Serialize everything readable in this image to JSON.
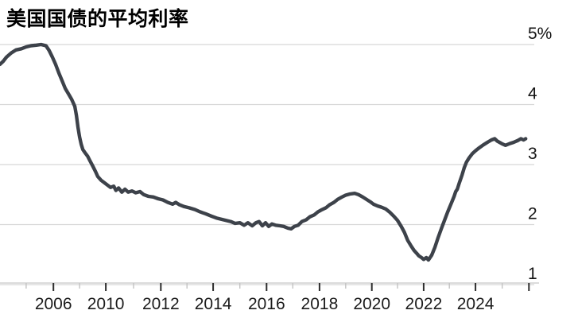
{
  "header": {
    "title": "美国国债的平均利率"
  },
  "chart_data": {
    "type": "line",
    "title": "美国国债的平均利率",
    "unit": "%",
    "grid": true,
    "legend": "none",
    "colors": {
      "line": "#3d424a",
      "grid": "#d7d7d7",
      "axis": "#c6c6c6",
      "tick_major": "#2d2d2d",
      "tick_minor": "#c3c3c3",
      "label": "#141414",
      "title": "#000000",
      "background": "#ffffff"
    },
    "y_axis": {
      "side": "right",
      "range": [
        1,
        5
      ],
      "ticks": [
        {
          "value": 5,
          "label": "5%"
        },
        {
          "value": 4,
          "label": "4"
        },
        {
          "value": 3,
          "label": "3"
        },
        {
          "value": 2,
          "label": "2"
        },
        {
          "value": 1,
          "label": "1"
        }
      ]
    },
    "x_axis": {
      "tick_labels_shown": [
        "2006",
        "2010",
        "2012",
        "2014",
        "2016",
        "2018",
        "2020",
        "2022",
        "2024"
      ],
      "ticks": [
        {
          "pos": 0.049,
          "major": false,
          "label": ""
        },
        {
          "pos": 0.1,
          "major": true,
          "label": "2006"
        },
        {
          "pos": 0.149,
          "major": false,
          "label": ""
        },
        {
          "pos": 0.198,
          "major": true,
          "label": "2010"
        },
        {
          "pos": 0.25,
          "major": false,
          "label": ""
        },
        {
          "pos": 0.301,
          "major": true,
          "label": "2012"
        },
        {
          "pos": 0.35,
          "major": false,
          "label": ""
        },
        {
          "pos": 0.399,
          "major": true,
          "label": "2014"
        },
        {
          "pos": 0.449,
          "major": false,
          "label": ""
        },
        {
          "pos": 0.499,
          "major": true,
          "label": "2016"
        },
        {
          "pos": 0.548,
          "major": false,
          "label": ""
        },
        {
          "pos": 0.598,
          "major": true,
          "label": "2018"
        },
        {
          "pos": 0.647,
          "major": false,
          "label": ""
        },
        {
          "pos": 0.696,
          "major": true,
          "label": "2020"
        },
        {
          "pos": 0.744,
          "major": false,
          "label": ""
        },
        {
          "pos": 0.793,
          "major": true,
          "label": "2022"
        },
        {
          "pos": 0.841,
          "major": false,
          "label": ""
        },
        {
          "pos": 0.89,
          "major": true,
          "label": "2024"
        },
        {
          "pos": 0.94,
          "major": false,
          "label": ""
        },
        {
          "pos": 0.99,
          "major": true,
          "label": ""
        }
      ]
    },
    "series": [
      {
        "name": "美国国债的平均利率",
        "color": "#3d424a",
        "points": [
          [
            0.0,
            4.67
          ],
          [
            0.006,
            4.72
          ],
          [
            0.012,
            4.79
          ],
          [
            0.021,
            4.86
          ],
          [
            0.03,
            4.91
          ],
          [
            0.04,
            4.93
          ],
          [
            0.049,
            4.96
          ],
          [
            0.058,
            4.98
          ],
          [
            0.068,
            4.99
          ],
          [
            0.077,
            5.0
          ],
          [
            0.086,
            4.98
          ],
          [
            0.092,
            4.9
          ],
          [
            0.098,
            4.79
          ],
          [
            0.104,
            4.67
          ],
          [
            0.11,
            4.53
          ],
          [
            0.116,
            4.4
          ],
          [
            0.122,
            4.27
          ],
          [
            0.128,
            4.18
          ],
          [
            0.134,
            4.09
          ],
          [
            0.14,
            3.97
          ],
          [
            0.143,
            3.82
          ],
          [
            0.146,
            3.62
          ],
          [
            0.149,
            3.46
          ],
          [
            0.152,
            3.34
          ],
          [
            0.155,
            3.25
          ],
          [
            0.159,
            3.2
          ],
          [
            0.164,
            3.14
          ],
          [
            0.168,
            3.07
          ],
          [
            0.174,
            2.97
          ],
          [
            0.179,
            2.88
          ],
          [
            0.183,
            2.8
          ],
          [
            0.189,
            2.74
          ],
          [
            0.195,
            2.7
          ],
          [
            0.201,
            2.66
          ],
          [
            0.207,
            2.62
          ],
          [
            0.213,
            2.64
          ],
          [
            0.217,
            2.57
          ],
          [
            0.222,
            2.61
          ],
          [
            0.228,
            2.54
          ],
          [
            0.234,
            2.59
          ],
          [
            0.24,
            2.54
          ],
          [
            0.247,
            2.56
          ],
          [
            0.254,
            2.53
          ],
          [
            0.262,
            2.55
          ],
          [
            0.269,
            2.5
          ],
          [
            0.278,
            2.47
          ],
          [
            0.287,
            2.46
          ],
          [
            0.296,
            2.43
          ],
          [
            0.305,
            2.41
          ],
          [
            0.314,
            2.37
          ],
          [
            0.323,
            2.34
          ],
          [
            0.329,
            2.37
          ],
          [
            0.336,
            2.33
          ],
          [
            0.345,
            2.3
          ],
          [
            0.354,
            2.28
          ],
          [
            0.365,
            2.25
          ],
          [
            0.375,
            2.21
          ],
          [
            0.385,
            2.18
          ],
          [
            0.396,
            2.14
          ],
          [
            0.405,
            2.11
          ],
          [
            0.414,
            2.09
          ],
          [
            0.423,
            2.07
          ],
          [
            0.432,
            2.05
          ],
          [
            0.44,
            2.02
          ],
          [
            0.449,
            2.03
          ],
          [
            0.457,
            1.99
          ],
          [
            0.464,
            2.03
          ],
          [
            0.472,
            1.98
          ],
          [
            0.479,
            2.03
          ],
          [
            0.485,
            2.05
          ],
          [
            0.491,
            1.98
          ],
          [
            0.497,
            2.03
          ],
          [
            0.503,
            1.97
          ],
          [
            0.509,
            2.01
          ],
          [
            0.516,
            1.99
          ],
          [
            0.524,
            1.98
          ],
          [
            0.531,
            1.97
          ],
          [
            0.539,
            1.94
          ],
          [
            0.545,
            1.93
          ],
          [
            0.551,
            1.97
          ],
          [
            0.558,
            1.99
          ],
          [
            0.565,
            2.05
          ],
          [
            0.573,
            2.08
          ],
          [
            0.58,
            2.13
          ],
          [
            0.588,
            2.16
          ],
          [
            0.595,
            2.21
          ],
          [
            0.603,
            2.25
          ],
          [
            0.61,
            2.28
          ],
          [
            0.617,
            2.33
          ],
          [
            0.625,
            2.37
          ],
          [
            0.632,
            2.42
          ],
          [
            0.64,
            2.46
          ],
          [
            0.647,
            2.49
          ],
          [
            0.655,
            2.51
          ],
          [
            0.664,
            2.52
          ],
          [
            0.671,
            2.5
          ],
          [
            0.679,
            2.46
          ],
          [
            0.686,
            2.42
          ],
          [
            0.693,
            2.38
          ],
          [
            0.699,
            2.34
          ],
          [
            0.707,
            2.31
          ],
          [
            0.714,
            2.29
          ],
          [
            0.722,
            2.26
          ],
          [
            0.729,
            2.21
          ],
          [
            0.737,
            2.14
          ],
          [
            0.744,
            2.07
          ],
          [
            0.751,
            1.97
          ],
          [
            0.757,
            1.87
          ],
          [
            0.763,
            1.74
          ],
          [
            0.769,
            1.65
          ],
          [
            0.775,
            1.57
          ],
          [
            0.78,
            1.52
          ],
          [
            0.784,
            1.48
          ],
          [
            0.789,
            1.45
          ],
          [
            0.793,
            1.42
          ],
          [
            0.798,
            1.45
          ],
          [
            0.802,
            1.41
          ],
          [
            0.808,
            1.49
          ],
          [
            0.814,
            1.62
          ],
          [
            0.82,
            1.78
          ],
          [
            0.826,
            1.93
          ],
          [
            0.832,
            2.07
          ],
          [
            0.838,
            2.21
          ],
          [
            0.844,
            2.34
          ],
          [
            0.85,
            2.47
          ],
          [
            0.853,
            2.55
          ],
          [
            0.856,
            2.59
          ],
          [
            0.86,
            2.7
          ],
          [
            0.865,
            2.83
          ],
          [
            0.869,
            2.95
          ],
          [
            0.873,
            3.04
          ],
          [
            0.878,
            3.11
          ],
          [
            0.884,
            3.18
          ],
          [
            0.89,
            3.23
          ],
          [
            0.897,
            3.28
          ],
          [
            0.905,
            3.33
          ],
          [
            0.912,
            3.37
          ],
          [
            0.92,
            3.41
          ],
          [
            0.926,
            3.43
          ],
          [
            0.931,
            3.39
          ],
          [
            0.939,
            3.35
          ],
          [
            0.946,
            3.32
          ],
          [
            0.954,
            3.35
          ],
          [
            0.961,
            3.37
          ],
          [
            0.969,
            3.4
          ],
          [
            0.975,
            3.43
          ],
          [
            0.98,
            3.41
          ],
          [
            0.984,
            3.43
          ]
        ]
      }
    ]
  }
}
